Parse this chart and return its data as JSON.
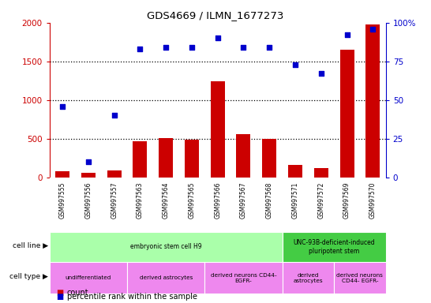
{
  "title": "GDS4669 / ILMN_1677273",
  "samples": [
    "GSM997555",
    "GSM997556",
    "GSM997557",
    "GSM997563",
    "GSM997564",
    "GSM997565",
    "GSM997566",
    "GSM997567",
    "GSM997568",
    "GSM997571",
    "GSM997572",
    "GSM997569",
    "GSM997570"
  ],
  "counts": [
    75,
    55,
    90,
    470,
    510,
    490,
    1240,
    560,
    500,
    155,
    120,
    1650,
    1980
  ],
  "percentile": [
    46,
    10,
    40,
    83,
    84,
    84,
    90,
    84,
    84,
    73,
    67,
    92,
    96
  ],
  "bar_color": "#cc0000",
  "dot_color": "#0000cc",
  "ylim_left": [
    0,
    2000
  ],
  "ylim_right": [
    0,
    100
  ],
  "yticks_left": [
    0,
    500,
    1000,
    1500,
    2000
  ],
  "yticks_right": [
    0,
    25,
    50,
    75,
    100
  ],
  "yticklabels_right": [
    "0",
    "25",
    "50",
    "75",
    "100%"
  ],
  "cell_line_groups": [
    {
      "label": "embryonic stem cell H9",
      "start": 0,
      "end": 9,
      "color": "#aaffaa"
    },
    {
      "label": "UNC-93B-deficient-induced\npluripotent stem",
      "start": 9,
      "end": 13,
      "color": "#44cc44"
    }
  ],
  "cell_type_groups": [
    {
      "label": "undifferentiated",
      "start": 0,
      "end": 3,
      "color": "#ee88ee"
    },
    {
      "label": "derived astrocytes",
      "start": 3,
      "end": 6,
      "color": "#ee88ee"
    },
    {
      "label": "derived neurons CD44-\nEGFR-",
      "start": 6,
      "end": 9,
      "color": "#ee88ee"
    },
    {
      "label": "derived\nastrocytes",
      "start": 9,
      "end": 11,
      "color": "#ee88ee"
    },
    {
      "label": "derived neurons\nCD44- EGFR-",
      "start": 11,
      "end": 13,
      "color": "#ee88ee"
    }
  ],
  "chart_bg": "#ffffff",
  "tick_area_color": "#c8c8c8",
  "cell_line_border_color": "#ffffff",
  "cell_type_border_color": "#ffffff"
}
